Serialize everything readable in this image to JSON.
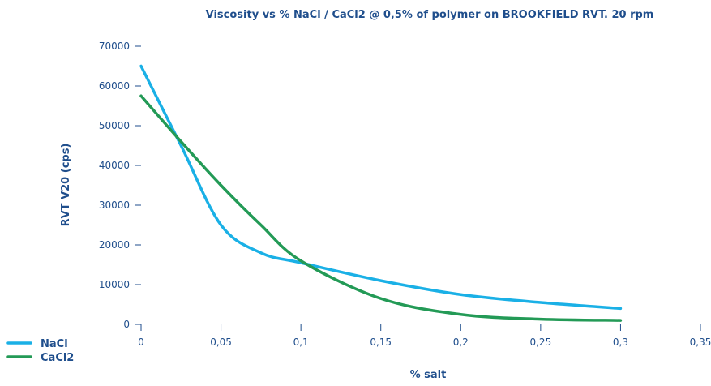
{
  "chart_data": {
    "type": "line",
    "title": "Viscosity vs % NaCl / CaCl2 @ 0,5% of polymer on BROOKFIELD RVT. 20 rpm",
    "xlabel": "% salt",
    "ylabel": "RVT V20 (cps)",
    "xlim": [
      0,
      0.35
    ],
    "ylim": [
      0,
      70000
    ],
    "x_ticks": [
      "0",
      "0,05",
      "0,1",
      "0,15",
      "0,2",
      "0,25",
      "0,3",
      "0,35"
    ],
    "y_ticks": [
      "0",
      "10000",
      "20000",
      "30000",
      "40000",
      "50000",
      "60000",
      "70000"
    ],
    "grid": false,
    "legend_position": "bottom-left",
    "series": [
      {
        "name": "NaCl",
        "color": "#1ab0e6",
        "x": [
          0,
          0.025,
          0.05,
          0.075,
          0.1,
          0.15,
          0.2,
          0.25,
          0.3
        ],
        "y": [
          65000,
          45000,
          25000,
          18000,
          15500,
          11000,
          7500,
          5500,
          4000
        ]
      },
      {
        "name": "CaCl2",
        "color": "#239a56",
        "x": [
          0,
          0.025,
          0.05,
          0.075,
          0.1,
          0.15,
          0.2,
          0.25,
          0.3
        ],
        "y": [
          57500,
          46000,
          35000,
          25000,
          16000,
          6500,
          2500,
          1300,
          1000
        ]
      }
    ]
  }
}
